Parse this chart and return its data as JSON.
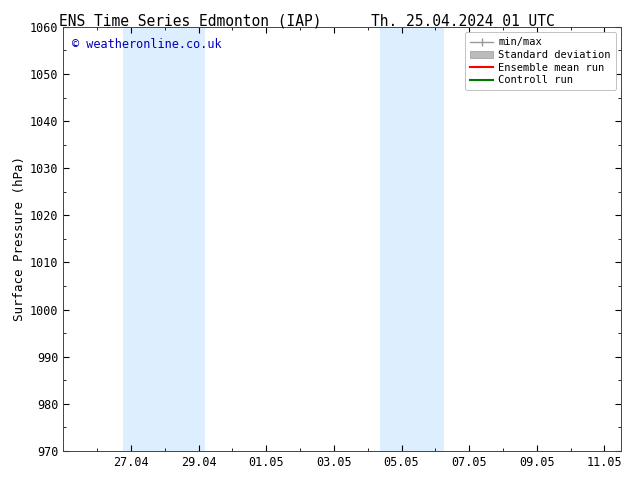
{
  "title_left": "ENS Time Series Edmonton (IAP)",
  "title_right": "Th. 25.04.2024 01 UTC",
  "ylabel": "Surface Pressure (hPa)",
  "ylim": [
    970,
    1060
  ],
  "yticks": [
    970,
    980,
    990,
    1000,
    1010,
    1020,
    1030,
    1040,
    1050,
    1060
  ],
  "xtick_labels": [
    "27.04",
    "29.04",
    "01.05",
    "03.05",
    "05.05",
    "07.05",
    "09.05",
    "11.05"
  ],
  "xtick_positions": [
    2,
    4,
    6,
    8,
    10,
    12,
    14,
    16
  ],
  "xlim": [
    0,
    16.5
  ],
  "band1": [
    1.75,
    4.2
  ],
  "band2": [
    9.35,
    11.25
  ],
  "band_color": "#ddeeff",
  "watermark": "© weatheronline.co.uk",
  "watermark_color": "#0000bb",
  "legend_labels": [
    "min/max",
    "Standard deviation",
    "Ensemble mean run",
    "Controll run"
  ],
  "legend_colors": [
    "#999999",
    "#bbbbbb",
    "#ff0000",
    "#007700"
  ],
  "bg_color": "#ffffff",
  "title_fontsize": 10.5,
  "tick_fontsize": 8.5,
  "label_fontsize": 9,
  "font_family": "DejaVu Sans Mono"
}
